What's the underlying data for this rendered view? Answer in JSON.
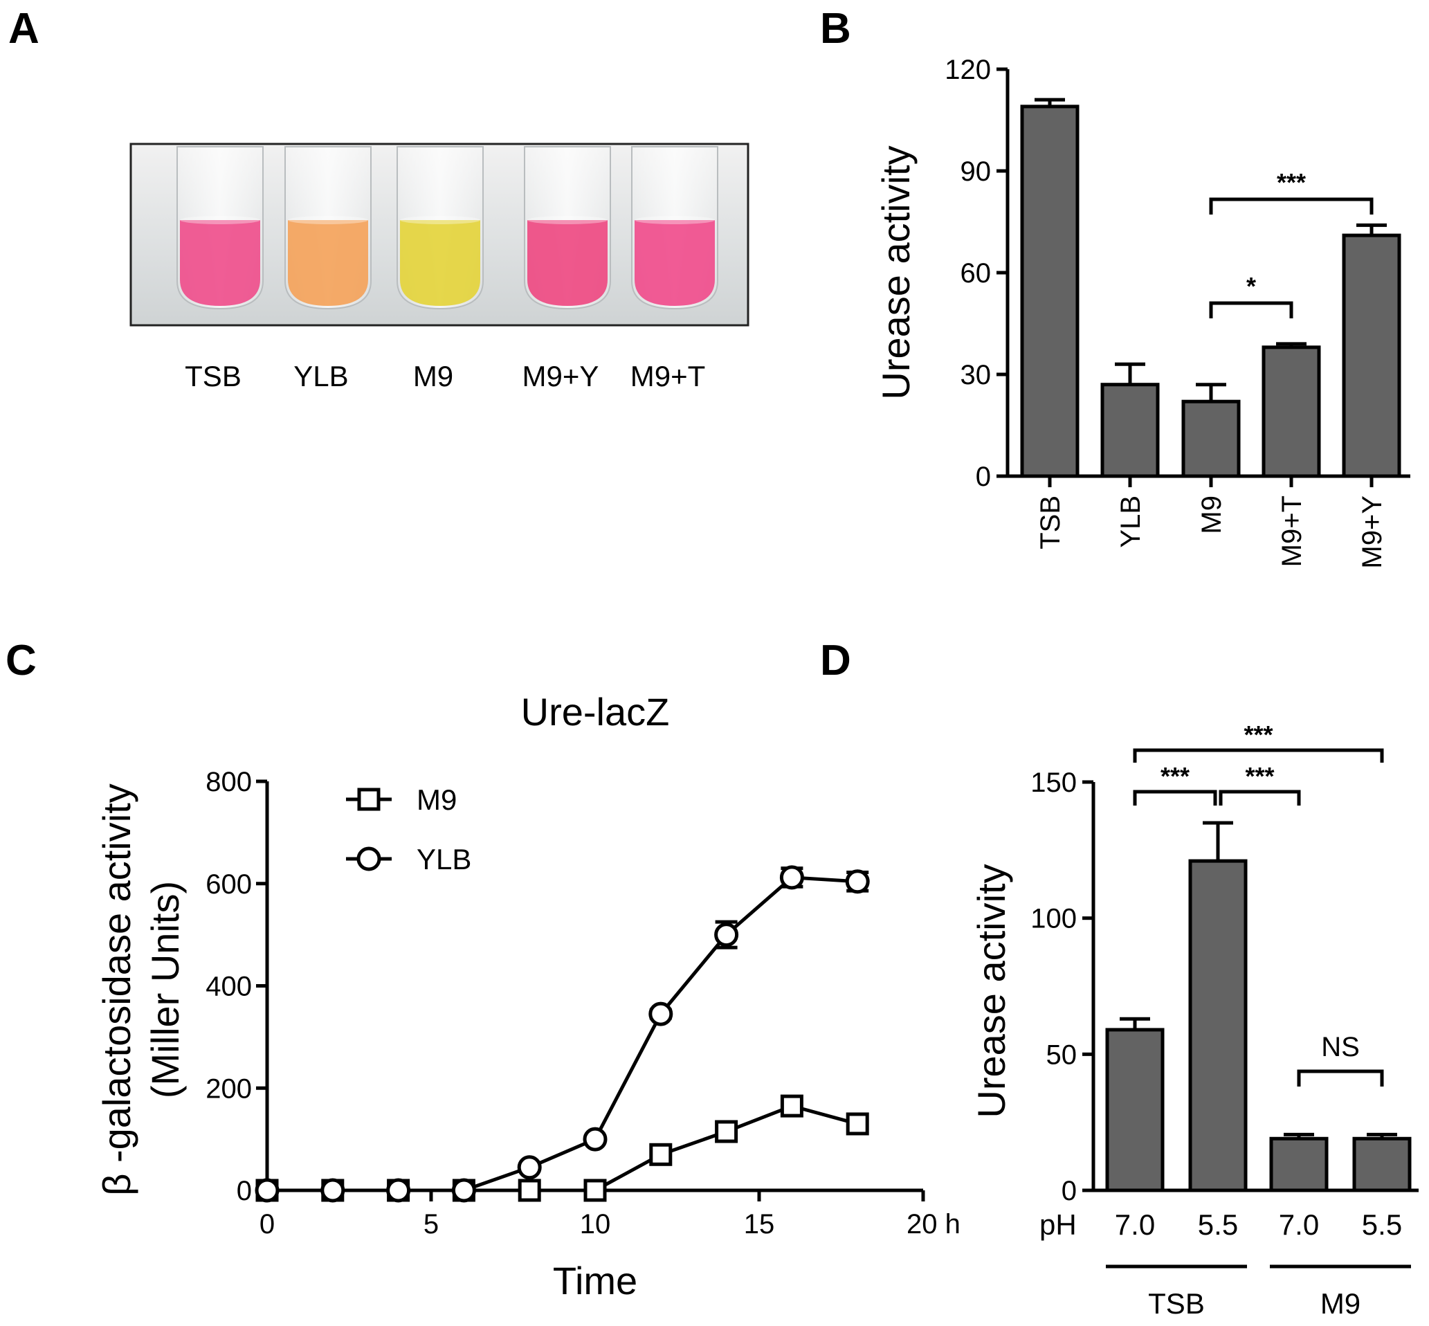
{
  "panels": {
    "A": "A",
    "B": "B",
    "C": "C",
    "D": "D"
  },
  "photo": {
    "tubes": [
      {
        "label": "TSB",
        "color": "#ef4f8c"
      },
      {
        "label": "YLB",
        "color": "#f4a35b"
      },
      {
        "label": "M9",
        "color": "#e4d43c"
      },
      {
        "label": "M9+Y",
        "color": "#ee4a82"
      },
      {
        "label": "M9+T",
        "color": "#f04d8c"
      }
    ]
  },
  "chart_data": [
    {
      "id": "B",
      "type": "bar",
      "title": "",
      "xlabel": "",
      "ylabel": "Urease activity",
      "ylim": [
        0,
        120
      ],
      "yticks": [
        0,
        30,
        60,
        90,
        120
      ],
      "categories": [
        "TSB",
        "YLB",
        "M9",
        "M9+T",
        "M9+Y"
      ],
      "values": [
        109,
        27,
        22,
        38,
        71
      ],
      "errors": [
        2,
        6,
        5,
        1,
        3
      ],
      "significance": [
        {
          "from": 2,
          "to": 3,
          "label": "*"
        },
        {
          "from": 2,
          "to": 4,
          "label": "***"
        }
      ]
    },
    {
      "id": "C",
      "type": "line",
      "title": "Ure-lacZ",
      "xlabel": "Time",
      "ylabel": "β -galactosidase activity",
      "ylabel2": "(Miller Units)",
      "xlim": [
        0,
        20
      ],
      "ylim": [
        0,
        800
      ],
      "xticks": [
        "0",
        "5",
        "10",
        "15",
        "20 h"
      ],
      "yticks": [
        0,
        200,
        400,
        600,
        800
      ],
      "x": [
        0,
        2,
        4,
        6,
        8,
        10,
        12,
        14,
        16,
        18
      ],
      "series": [
        {
          "name": "M9",
          "marker": "square",
          "values": [
            0,
            0,
            0,
            0,
            0,
            0,
            70,
            115,
            165,
            130
          ],
          "errors": [
            0,
            0,
            0,
            0,
            0,
            0,
            6,
            8,
            10,
            12
          ]
        },
        {
          "name": "YLB",
          "marker": "circle",
          "values": [
            0,
            0,
            0,
            0,
            45,
            100,
            345,
            500,
            612,
            604
          ],
          "errors": [
            0,
            0,
            0,
            0,
            4,
            6,
            8,
            25,
            18,
            18
          ]
        }
      ]
    },
    {
      "id": "D",
      "type": "bar",
      "title": "",
      "ylabel": "Urease activity",
      "ylim": [
        0,
        150
      ],
      "yticks": [
        0,
        50,
        100,
        150
      ],
      "ph_label": "pH",
      "categories": [
        "7.0",
        "5.5",
        "7.0",
        "5.5"
      ],
      "groups": [
        {
          "label": "TSB",
          "start": 0,
          "end": 1
        },
        {
          "label": "M9",
          "start": 2,
          "end": 3
        }
      ],
      "values": [
        59,
        121,
        19,
        19
      ],
      "errors": [
        4,
        14,
        1.5,
        1.5
      ],
      "significance": [
        {
          "from": 0,
          "to": 1,
          "label": "***"
        },
        {
          "from": 1,
          "to": 2,
          "label": "***"
        },
        {
          "from": 0,
          "to": 3,
          "label": "***"
        },
        {
          "from": 2,
          "to": 3,
          "label": "NS"
        }
      ]
    }
  ]
}
